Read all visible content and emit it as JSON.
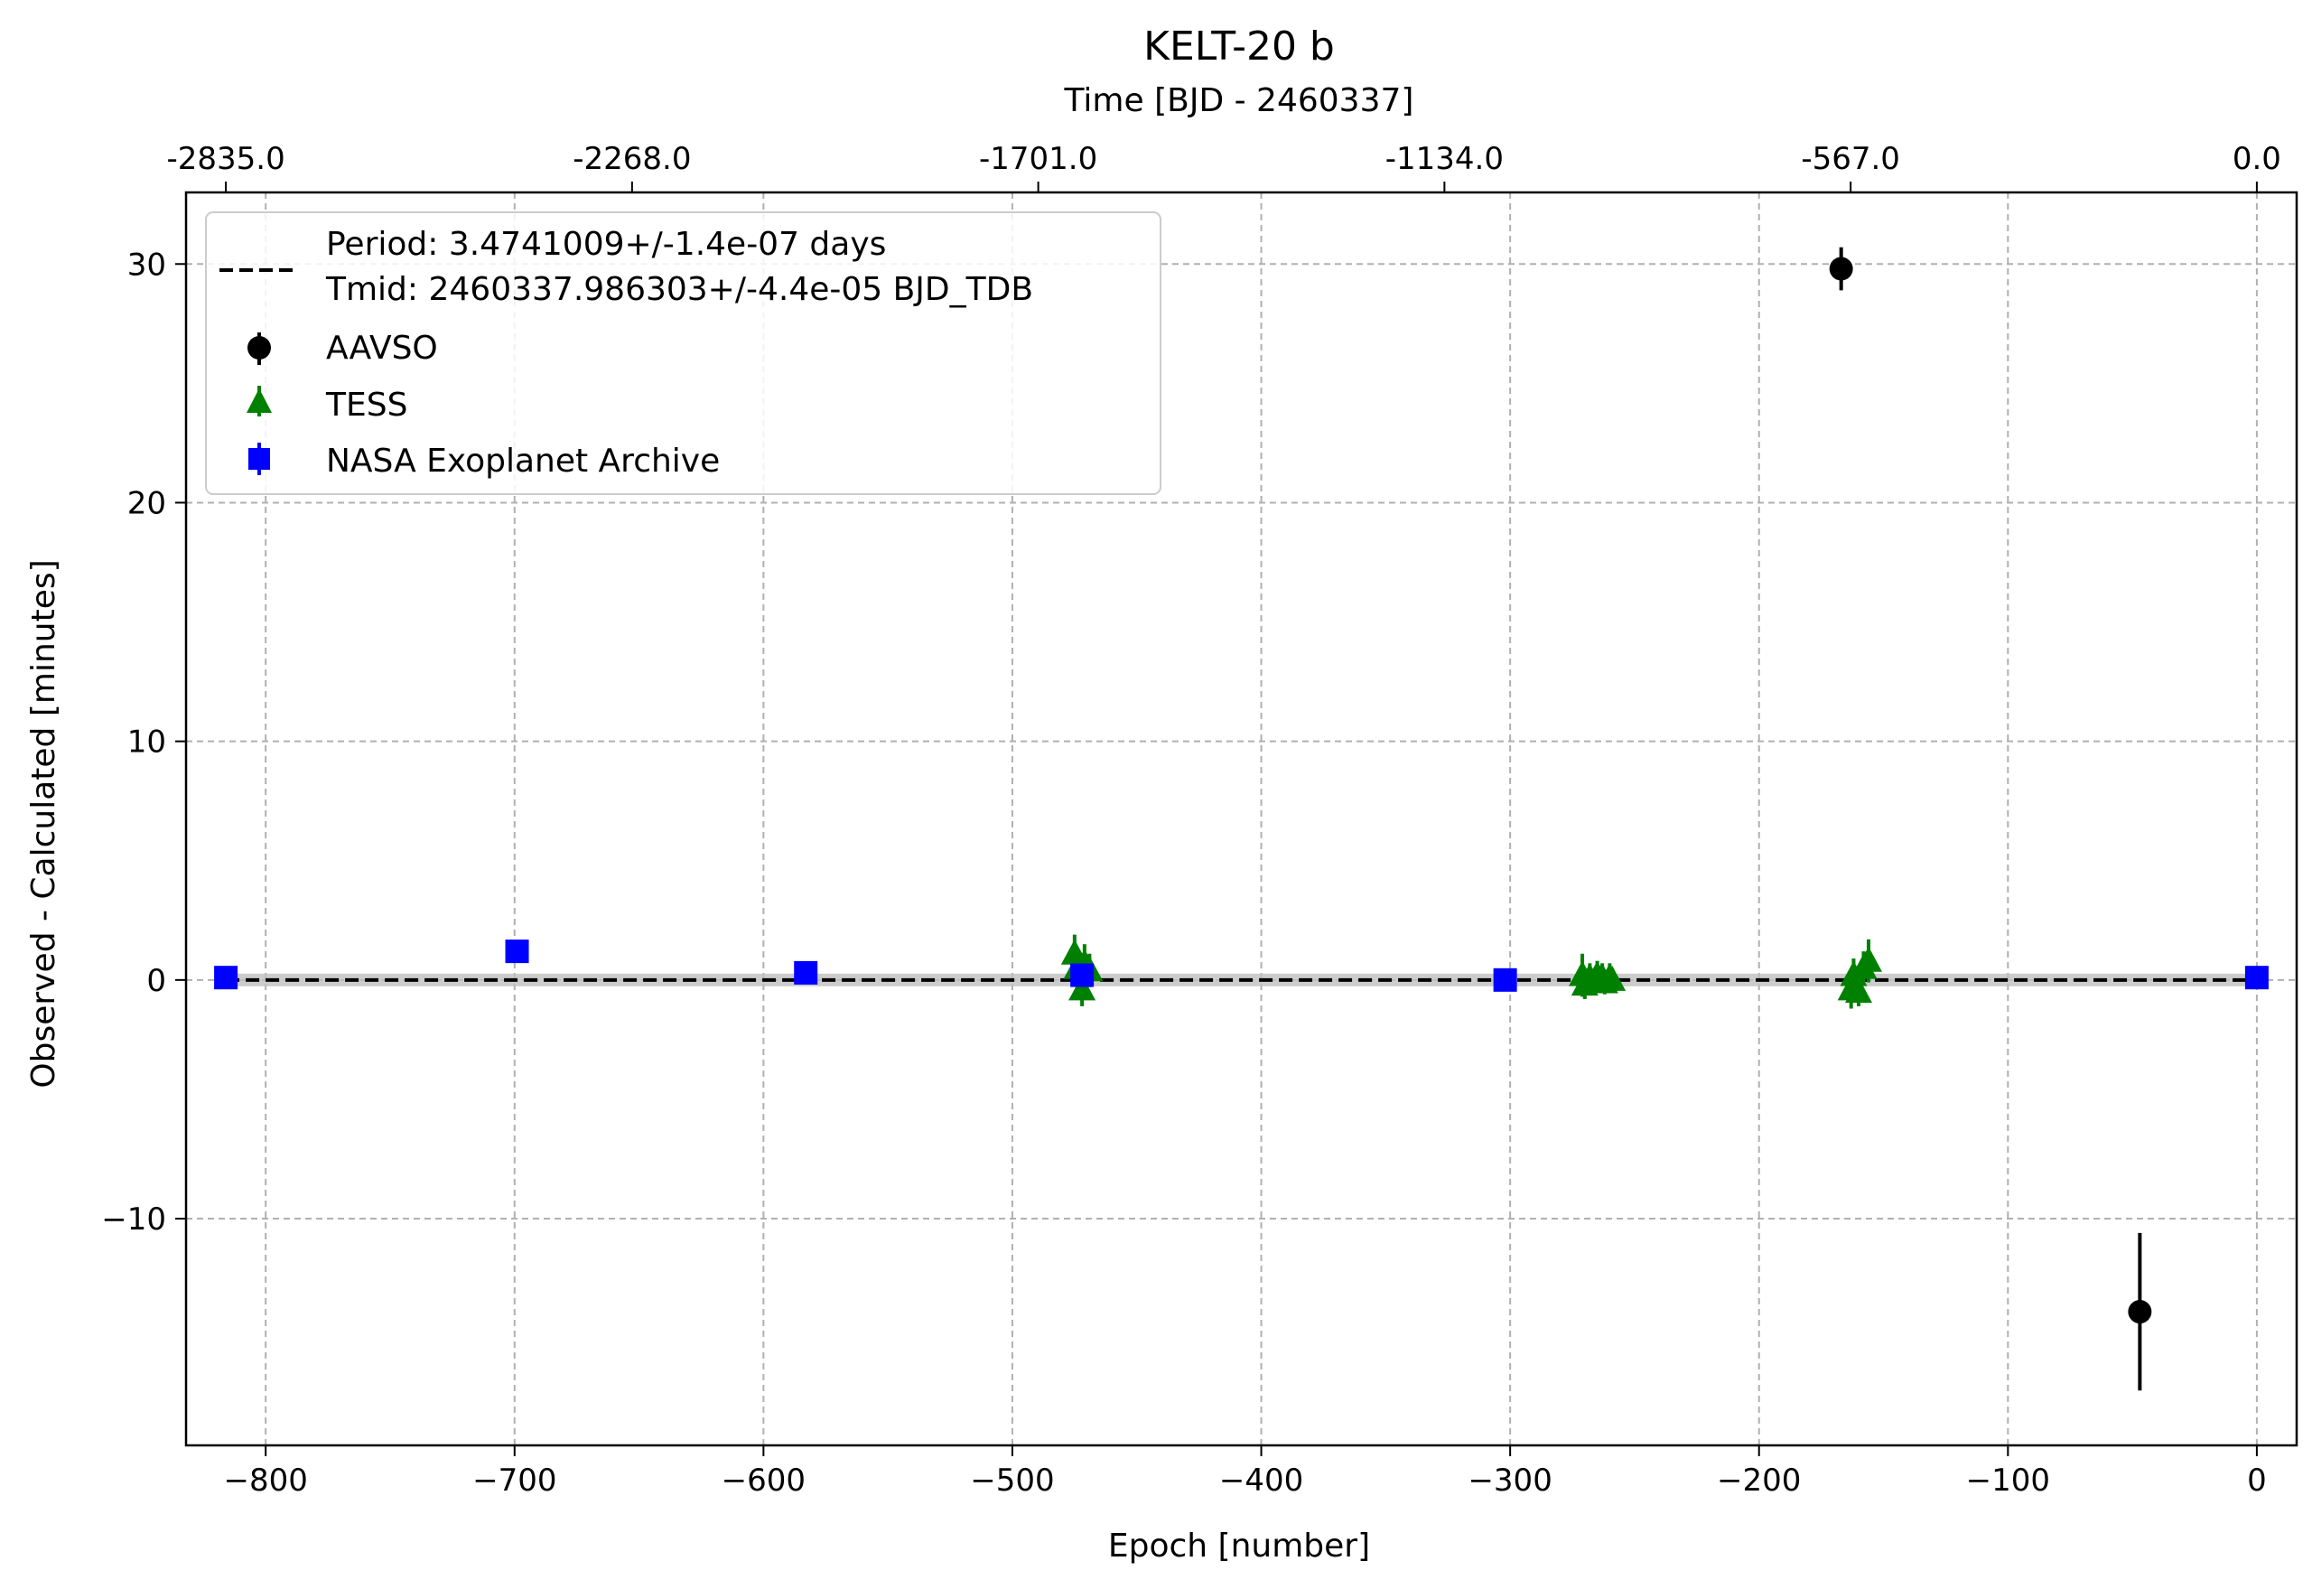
{
  "chart_data": {
    "type": "scatter",
    "title": "KELT-20 b",
    "xlabel": "Epoch [number]",
    "ylabel": "Observed - Calculated [minutes]",
    "top_xlabel": "Time [BJD - 2460337]",
    "xlim": [
      -832,
      16
    ],
    "ylim": [
      -19.5,
      33
    ],
    "x_ticks": [
      -800,
      -700,
      -600,
      -500,
      -400,
      -300,
      -200,
      -100,
      0
    ],
    "x_tick_labels": [
      "−800",
      "−700",
      "−600",
      "−500",
      "−400",
      "−300",
      "−200",
      "−100",
      "0"
    ],
    "y_ticks": [
      -10,
      0,
      10,
      20,
      30
    ],
    "y_tick_labels": [
      "−10",
      "0",
      "10",
      "20",
      "30"
    ],
    "top_x_ticks": [
      -816,
      -652.8,
      -489.6,
      -326.4,
      -163.2,
      0
    ],
    "top_x_tick_labels": [
      "-2835.0",
      "-2268.0",
      "-1701.0",
      "-1134.0",
      "-567.0",
      "0.0"
    ],
    "grid": true,
    "legend_position": "upper-left",
    "fit_line": {
      "label_line1": "Period: 3.4741009+/-1.4e-07 days",
      "label_line2": "Tmid: 2460337.986303+/-4.4e-05 BJD_TDB",
      "y": 0,
      "color": "#000000",
      "style": "dashed"
    },
    "series": [
      {
        "name": "AAVSO",
        "marker": "circle",
        "color": "#000000",
        "points": [
          {
            "x": -167,
            "y": 29.8,
            "err": 0.9
          },
          {
            "x": -47,
            "y": -13.9,
            "err": 3.3
          }
        ]
      },
      {
        "name": "TESS",
        "marker": "triangle",
        "color": "#008000",
        "points": [
          {
            "x": -475,
            "y": 1.1,
            "err": 0.8
          },
          {
            "x": -474,
            "y": 0.5,
            "err": 0.6
          },
          {
            "x": -472,
            "y": -0.4,
            "err": 0.7
          },
          {
            "x": -471,
            "y": 0.7,
            "err": 0.8
          },
          {
            "x": -469,
            "y": 0.4,
            "err": 0.7
          },
          {
            "x": -271,
            "y": 0.2,
            "err": 0.9
          },
          {
            "x": -270,
            "y": -0.2,
            "err": 0.6
          },
          {
            "x": -268,
            "y": 0.1,
            "err": 0.6
          },
          {
            "x": -267,
            "y": -0.1,
            "err": 0.5
          },
          {
            "x": -265,
            "y": 0.2,
            "err": 0.6
          },
          {
            "x": -264,
            "y": 0.0,
            "err": 0.5
          },
          {
            "x": -263,
            "y": 0.1,
            "err": 0.6
          },
          {
            "x": -262,
            "y": -0.1,
            "err": 0.5
          },
          {
            "x": -260,
            "y": 0.1,
            "err": 0.6
          },
          {
            "x": -259,
            "y": 0.0,
            "err": 0.5
          },
          {
            "x": -163,
            "y": -0.4,
            "err": 0.8
          },
          {
            "x": -162,
            "y": 0.2,
            "err": 0.7
          },
          {
            "x": -160,
            "y": -0.5,
            "err": 0.6
          },
          {
            "x": -158,
            "y": 0.5,
            "err": 0.7
          },
          {
            "x": -156,
            "y": 0.8,
            "err": 0.9
          }
        ]
      },
      {
        "name": "NASA Exoplanet Archive",
        "marker": "square",
        "color": "#0000ff",
        "points": [
          {
            "x": -816,
            "y": 0.1,
            "err": 0.2
          },
          {
            "x": -699,
            "y": 1.2,
            "err": 0.3
          },
          {
            "x": -583,
            "y": 0.3,
            "err": 0.2
          },
          {
            "x": -472,
            "y": 0.2,
            "err": 0.2
          },
          {
            "x": -302,
            "y": 0.0,
            "err": 0.2
          },
          {
            "x": 0,
            "y": 0.1,
            "err": 0.2
          }
        ]
      }
    ]
  }
}
